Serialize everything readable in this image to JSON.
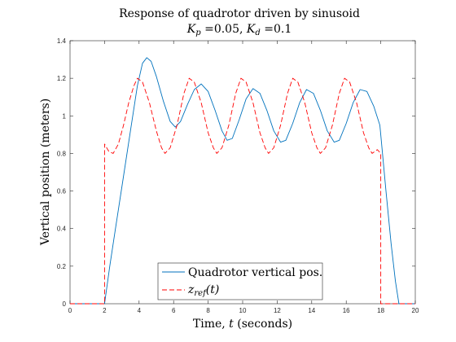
{
  "chart_data": {
    "type": "line",
    "title": "Response of quadrotor driven by sinusoid",
    "subtitle": {
      "kp_symbol": "K",
      "kp_sub": "p",
      "kp_value": " =0.05, ",
      "kd_symbol": "K",
      "kd_sub": "d",
      "kd_value": " =0.1"
    },
    "xlabel": {
      "prefix": "Time, ",
      "var": "t",
      "suffix": " (seconds)"
    },
    "ylabel": "Vertical position (meters)",
    "xlim": [
      0,
      20
    ],
    "ylim": [
      0,
      1.4
    ],
    "xticks": [
      0,
      2,
      4,
      6,
      8,
      10,
      12,
      14,
      16,
      18,
      20
    ],
    "yticks": [
      0,
      0.2,
      0.4,
      0.6,
      0.8,
      1,
      1.2,
      1.4
    ],
    "xtick_labels": [
      "0",
      "2",
      "4",
      "6",
      "8",
      "10",
      "12",
      "14",
      "16",
      "18",
      "20"
    ],
    "ytick_labels": [
      "0",
      "0.2",
      "0.4",
      "0.6",
      "0.8",
      "1",
      "1.2",
      "1.4"
    ],
    "grid": false,
    "legend_position": "bottom-center",
    "series": [
      {
        "name": "Quadrotor vertical pos.",
        "color": "#0072BD",
        "dash": "solid",
        "points": [
          [
            0,
            0
          ],
          [
            2,
            0
          ],
          [
            2.3,
            0.2
          ],
          [
            2.6,
            0.38
          ],
          [
            3.0,
            0.62
          ],
          [
            3.5,
            0.92
          ],
          [
            3.9,
            1.16
          ],
          [
            4.2,
            1.28
          ],
          [
            4.45,
            1.31
          ],
          [
            4.7,
            1.29
          ],
          [
            5.0,
            1.21
          ],
          [
            5.4,
            1.08
          ],
          [
            5.8,
            0.97
          ],
          [
            6.1,
            0.94
          ],
          [
            6.4,
            0.97
          ],
          [
            6.8,
            1.06
          ],
          [
            7.2,
            1.14
          ],
          [
            7.6,
            1.17
          ],
          [
            8.0,
            1.13
          ],
          [
            8.4,
            1.03
          ],
          [
            8.8,
            0.92
          ],
          [
            9.1,
            0.87
          ],
          [
            9.4,
            0.88
          ],
          [
            9.8,
            0.98
          ],
          [
            10.2,
            1.09
          ],
          [
            10.6,
            1.145
          ],
          [
            11.0,
            1.12
          ],
          [
            11.4,
            1.03
          ],
          [
            11.8,
            0.92
          ],
          [
            12.2,
            0.86
          ],
          [
            12.5,
            0.87
          ],
          [
            12.9,
            0.96
          ],
          [
            13.3,
            1.07
          ],
          [
            13.7,
            1.14
          ],
          [
            14.1,
            1.12
          ],
          [
            14.5,
            1.03
          ],
          [
            14.9,
            0.92
          ],
          [
            15.3,
            0.86
          ],
          [
            15.6,
            0.87
          ],
          [
            16.0,
            0.96
          ],
          [
            16.4,
            1.07
          ],
          [
            16.8,
            1.14
          ],
          [
            17.2,
            1.13
          ],
          [
            17.6,
            1.05
          ],
          [
            17.95,
            0.95
          ],
          [
            18.0,
            0.9
          ],
          [
            18.3,
            0.6
          ],
          [
            18.6,
            0.32
          ],
          [
            18.85,
            0.12
          ],
          [
            19.05,
            0
          ],
          [
            20,
            0
          ]
        ]
      },
      {
        "name": "z_ref(t)",
        "legend_symbol": "z",
        "legend_sub": "ref",
        "legend_suffix": "(t)",
        "color": "#ff0000",
        "dash": "dashed",
        "points": [
          [
            0,
            0
          ],
          [
            2,
            0
          ],
          [
            2,
            0.85
          ],
          [
            2.25,
            0.81
          ],
          [
            2.5,
            0.8
          ],
          [
            2.8,
            0.85
          ],
          [
            3.1,
            0.95
          ],
          [
            3.4,
            1.07
          ],
          [
            3.7,
            1.16
          ],
          [
            3.9,
            1.2
          ],
          [
            4.2,
            1.18
          ],
          [
            4.6,
            1.07
          ],
          [
            5.0,
            0.92
          ],
          [
            5.3,
            0.83
          ],
          [
            5.5,
            0.8
          ],
          [
            5.8,
            0.83
          ],
          [
            6.2,
            0.95
          ],
          [
            6.6,
            1.12
          ],
          [
            6.9,
            1.2
          ],
          [
            7.2,
            1.18
          ],
          [
            7.6,
            1.07
          ],
          [
            8.0,
            0.91
          ],
          [
            8.3,
            0.83
          ],
          [
            8.5,
            0.8
          ],
          [
            8.8,
            0.83
          ],
          [
            9.2,
            0.95
          ],
          [
            9.6,
            1.12
          ],
          [
            9.9,
            1.2
          ],
          [
            10.2,
            1.18
          ],
          [
            10.6,
            1.07
          ],
          [
            11.0,
            0.91
          ],
          [
            11.3,
            0.83
          ],
          [
            11.5,
            0.8
          ],
          [
            11.8,
            0.83
          ],
          [
            12.2,
            0.95
          ],
          [
            12.6,
            1.12
          ],
          [
            12.9,
            1.2
          ],
          [
            13.2,
            1.18
          ],
          [
            13.6,
            1.07
          ],
          [
            14.0,
            0.91
          ],
          [
            14.3,
            0.83
          ],
          [
            14.5,
            0.8
          ],
          [
            14.8,
            0.83
          ],
          [
            15.2,
            0.95
          ],
          [
            15.6,
            1.12
          ],
          [
            15.9,
            1.2
          ],
          [
            16.2,
            1.18
          ],
          [
            16.6,
            1.07
          ],
          [
            17.0,
            0.91
          ],
          [
            17.3,
            0.83
          ],
          [
            17.5,
            0.8
          ],
          [
            17.8,
            0.82
          ],
          [
            18,
            0.8
          ],
          [
            18,
            0
          ],
          [
            20,
            0
          ]
        ]
      }
    ]
  }
}
